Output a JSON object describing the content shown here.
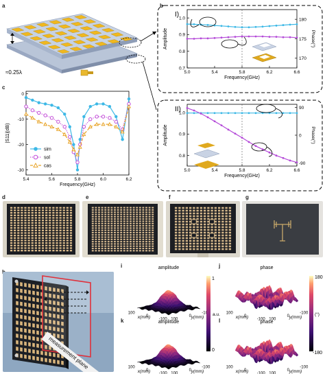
{
  "panel_labels": {
    "a": "a",
    "b": "b",
    "c": "c",
    "d": "d",
    "e": "e",
    "f": "f",
    "g": "g",
    "h": "h",
    "i": "i",
    "j": "j",
    "k": "k",
    "l": "l"
  },
  "panel_a": {
    "dimension_label": "≈0.25λ"
  },
  "panel_h": {
    "plane_label": "measurement plane"
  },
  "chart_data": [
    {
      "id": "b-I",
      "type": "line",
      "panel_title": "I)",
      "xlabel": "Frequency(GHz)",
      "ylabel": "Amplitude",
      "y2label": "Phase(°)",
      "x_ticks": [
        "5.0",
        "5.4",
        "5.8",
        "6.2",
        "6.6"
      ],
      "y_ticks": [
        "0.7",
        "0.8",
        "0.9",
        "1.0"
      ],
      "y2_ticks": [
        "170",
        "175",
        "180"
      ],
      "xlim": [
        5.0,
        6.6
      ],
      "ylim": [
        0.7,
        1.05
      ],
      "y2lim": [
        167.5,
        182.5
      ],
      "x": [
        5.0,
        5.1,
        5.2,
        5.3,
        5.4,
        5.5,
        5.6,
        5.7,
        5.8,
        5.9,
        6.0,
        6.1,
        6.2,
        6.3,
        6.4,
        6.5,
        6.6
      ],
      "series": [
        {
          "axis": "left",
          "color": "#3cb8e6",
          "values": [
            0.963,
            0.962,
            0.96,
            0.958,
            0.955,
            0.952,
            0.949,
            0.946,
            0.944,
            0.944,
            0.946,
            0.948,
            0.951,
            0.954,
            0.957,
            0.96,
            0.962
          ]
        },
        {
          "axis": "right",
          "color": "#b44ad8",
          "values": [
            175.0,
            175.0,
            175.1,
            175.1,
            175.2,
            175.3,
            175.4,
            175.5,
            175.6,
            175.6,
            175.6,
            175.6,
            175.5,
            175.5,
            175.4,
            175.4,
            175.3
          ]
        }
      ],
      "vline": 5.8
    },
    {
      "id": "b-II",
      "type": "line",
      "panel_title": "II)",
      "xlabel": "Frequency(GHz)",
      "ylabel": "Amplitude",
      "y2label": "Phase(°)",
      "x_ticks": [
        "5.0",
        "5.4",
        "5.8",
        "6.2",
        "6.6"
      ],
      "y_ticks": [
        "0.8",
        "0.9",
        "1.0"
      ],
      "y2_ticks": [
        "-90",
        "0",
        "90"
      ],
      "xlim": [
        5.0,
        6.6
      ],
      "ylim": [
        0.75,
        1.04
      ],
      "y2lim": [
        -100,
        100
      ],
      "x": [
        5.0,
        5.1,
        5.2,
        5.3,
        5.4,
        5.5,
        5.6,
        5.7,
        5.8,
        5.9,
        6.0,
        6.1,
        6.2,
        6.3,
        6.4,
        6.5,
        6.6
      ],
      "series": [
        {
          "axis": "left",
          "color": "#3cb8e6",
          "values": [
            0.999,
            0.999,
            0.999,
            0.999,
            0.999,
            0.999,
            0.999,
            0.999,
            0.999,
            0.999,
            0.999,
            0.999,
            0.999,
            0.999,
            0.999,
            0.999,
            0.999
          ]
        },
        {
          "axis": "right",
          "color": "#b44ad8",
          "values": [
            88,
            80,
            70,
            58,
            45,
            32,
            18,
            5,
            -8,
            -22,
            -35,
            -46,
            -56,
            -66,
            -74,
            -82,
            -88
          ]
        }
      ],
      "vline": 5.8
    },
    {
      "id": "c",
      "type": "line",
      "xlabel": "Frequency(GHz)",
      "ylabel": "|S11|(dB)",
      "x_ticks": [
        "5.4",
        "5.6",
        "5.8",
        "6.0",
        "6.2"
      ],
      "y_ticks": [
        "-30",
        "-20",
        "-10",
        "0"
      ],
      "xlim": [
        5.4,
        6.2
      ],
      "ylim": [
        -32,
        1
      ],
      "legend": [
        "sim",
        "sol",
        "cas"
      ],
      "legend_position": "bottom-left",
      "x": [
        5.4,
        5.45,
        5.5,
        5.55,
        5.6,
        5.65,
        5.7,
        5.74,
        5.77,
        5.8,
        5.82,
        5.85,
        5.9,
        5.95,
        6.0,
        6.05,
        6.1,
        6.15,
        6.2
      ],
      "series": [
        {
          "name": "sim",
          "color": "#3cb8e6",
          "style": "solid",
          "marker": "circle",
          "values": [
            -1.5,
            -2.5,
            -3.5,
            -4.0,
            -4.5,
            -5.5,
            -8,
            -13,
            -20,
            -30,
            -18,
            -9,
            -5,
            -4,
            -4,
            -5,
            -9,
            -18,
            -2
          ]
        },
        {
          "name": "sol",
          "color": "#c24ad8",
          "style": "dotted",
          "marker": "ring",
          "values": [
            -5,
            -6.5,
            -7.5,
            -8.5,
            -9.5,
            -11,
            -13,
            -17,
            -23,
            -27,
            -20,
            -13,
            -10,
            -9,
            -9,
            -9.5,
            -11,
            -14,
            -4
          ]
        },
        {
          "name": "cas",
          "color": "#e8a428",
          "style": "dashed",
          "marker": "triangle",
          "values": [
            -8,
            -9.5,
            -11,
            -12,
            -13,
            -14,
            -16,
            -19,
            -22,
            -24,
            -21,
            -16,
            -13,
            -12,
            -12,
            -12,
            -13,
            -15,
            -5
          ]
        }
      ]
    }
  ],
  "surfaces": {
    "i": {
      "title": "amplitude",
      "x_axis": "x(mm)",
      "y_axis": "y(mm)",
      "ticks_x": [
        "100",
        "0",
        "-100"
      ],
      "ticks_y": [
        "-100",
        "0",
        "100"
      ]
    },
    "j": {
      "title": "phase",
      "x_axis": "x(mm)",
      "y_axis": "y(mm)",
      "ticks_x": [
        "100",
        "0",
        "-100"
      ],
      "ticks_y": [
        "-100",
        "0",
        "100"
      ]
    },
    "k": {
      "title": "amplitude",
      "x_axis": "x(mm)",
      "y_axis": "y(mm)",
      "ticks_x": [
        "100",
        "0",
        "-100"
      ],
      "ticks_y": [
        "-100",
        "0",
        "100"
      ]
    },
    "l": {
      "title": "phase",
      "x_axis": "x(mm)",
      "y_axis": "y(mm)",
      "ticks_x": [
        "100",
        "0",
        "-100"
      ],
      "ticks_y": [
        "-100",
        "0",
        "100"
      ]
    }
  },
  "colorbars": {
    "amplitude": {
      "label": "a.u.",
      "ticks": [
        "1",
        "0"
      ]
    },
    "phase": {
      "label": "(°)",
      "ticks": [
        "180",
        "-180"
      ]
    }
  }
}
